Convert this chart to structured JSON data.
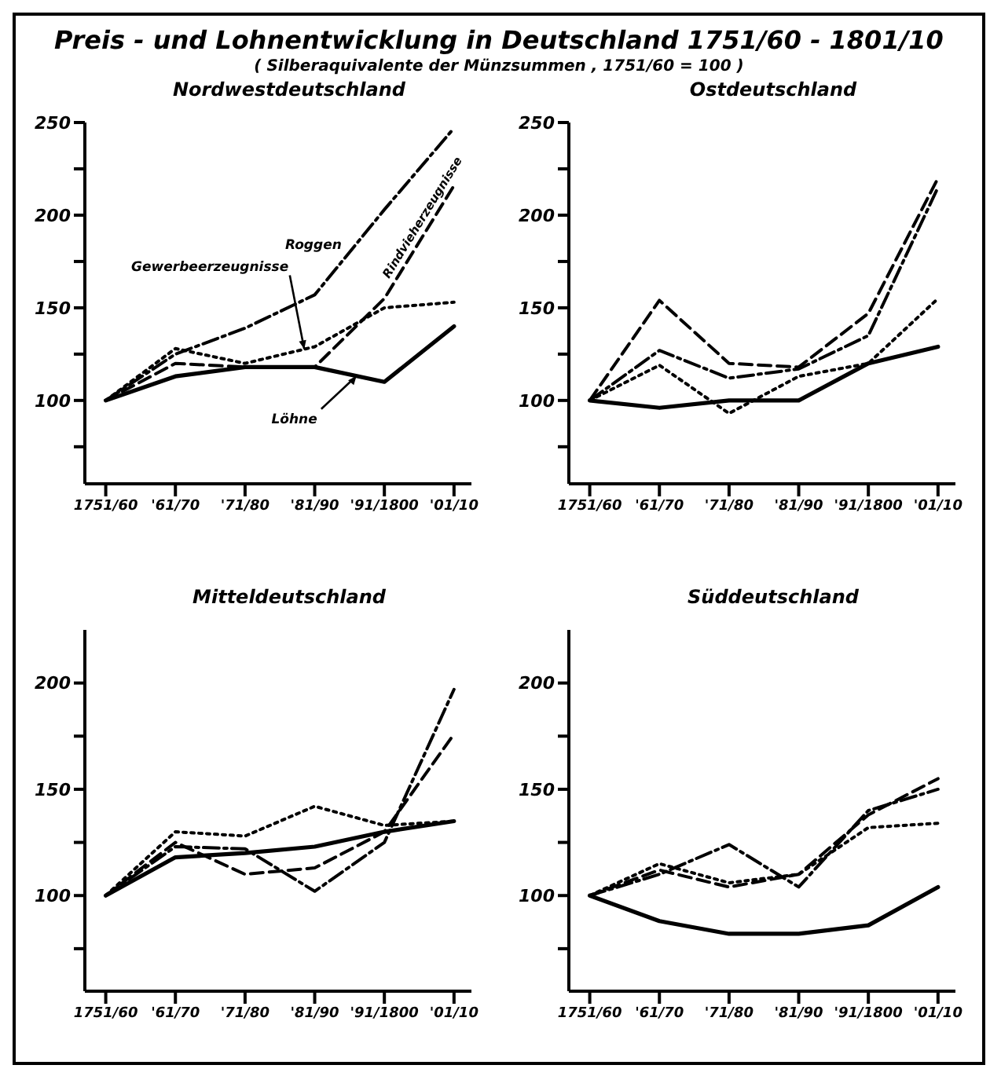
{
  "chart_data": [
    {
      "type": "line",
      "title": "Preis - und Lohnentwicklung in Deutschland  1751/60 - 1801/10",
      "subtitle": "( Silberaquivalente der Münzsummen , 1751/60 = 100 )",
      "annotations": [
        "Nordwestdeutschland"
      ],
      "categories": [
        "1751/60",
        "'61/70",
        "'71/80",
        "'81/90",
        "'91/1800",
        "'01/10"
      ],
      "ylim": [
        55,
        250
      ],
      "yticks": [
        {
          "value": 75,
          "label": null
        },
        100,
        {
          "value": 125,
          "label": null
        },
        150,
        {
          "value": 175,
          "label": null
        },
        200,
        {
          "value": 225,
          "label": null
        },
        250
      ],
      "grid": false,
      "legend": false,
      "series": [
        {
          "name": "Roggen",
          "color": "#000000",
          "line_style": "dashdot",
          "values": [
            100,
            125,
            139,
            157,
            203,
            247
          ]
        },
        {
          "name": "Rindvieherzeugnisse",
          "color": "#000000",
          "line_style": "dashed",
          "values": [
            100,
            120,
            118,
            118,
            155,
            216
          ]
        },
        {
          "name": "Gewerbeerzeugnisse",
          "color": "#000000",
          "line_style": "dotted",
          "values": [
            100,
            128,
            120,
            129,
            150,
            153
          ]
        },
        {
          "name": "Löhne",
          "color": "#000000",
          "line_style": "solid",
          "values": [
            100,
            113,
            118,
            118,
            110,
            140
          ]
        }
      ]
    },
    {
      "type": "line",
      "annotations": [
        "Ostdeutschland"
      ],
      "categories": [
        "1751/60",
        "'61/70",
        "'71/80",
        "'81/90",
        "'91/1800",
        "'01/10"
      ],
      "ylim": [
        55,
        250
      ],
      "yticks": [
        {
          "value": 75,
          "label": null
        },
        100,
        {
          "value": 125,
          "label": null
        },
        150,
        {
          "value": 175,
          "label": null
        },
        200,
        {
          "value": 225,
          "label": null
        },
        250
      ],
      "grid": false,
      "legend": false,
      "series": [
        {
          "color": "#000000",
          "line_style": "dashdot",
          "values": [
            100,
            127,
            112,
            117,
            135,
            215
          ]
        },
        {
          "color": "#000000",
          "line_style": "dashed",
          "values": [
            100,
            154,
            120,
            118,
            147,
            220
          ]
        },
        {
          "color": "#000000",
          "line_style": "dotted",
          "values": [
            100,
            119,
            93,
            113,
            120,
            155
          ]
        },
        {
          "color": "#000000",
          "line_style": "solid",
          "values": [
            100,
            96,
            100,
            100,
            120,
            129
          ]
        }
      ]
    },
    {
      "type": "line",
      "annotations": [
        "Mitteldeutschland"
      ],
      "categories": [
        "1751/60",
        "'61/70",
        "'71/80",
        "'81/90",
        "'91/1800",
        "'01/10"
      ],
      "ylim": [
        55,
        225
      ],
      "yticks": [
        {
          "value": 75,
          "label": null
        },
        100,
        {
          "value": 125,
          "label": null
        },
        150,
        {
          "value": 175,
          "label": null
        },
        200
      ],
      "grid": false,
      "legend": false,
      "series": [
        {
          "color": "#000000",
          "line_style": "dashdot",
          "values": [
            100,
            123,
            122,
            102,
            125,
            197
          ]
        },
        {
          "color": "#000000",
          "line_style": "dashed",
          "values": [
            100,
            125,
            110,
            113,
            130,
            176
          ]
        },
        {
          "color": "#000000",
          "line_style": "dotted",
          "values": [
            100,
            130,
            128,
            142,
            133,
            135
          ]
        },
        {
          "color": "#000000",
          "line_style": "solid",
          "values": [
            100,
            118,
            120,
            123,
            130,
            135
          ]
        }
      ]
    },
    {
      "type": "line",
      "annotations": [
        "Süddeutschland"
      ],
      "categories": [
        "1751/60",
        "'61/70",
        "'71/80",
        "'81/90",
        "'91/1800",
        "'01/10"
      ],
      "ylim": [
        55,
        225
      ],
      "yticks": [
        {
          "value": 75,
          "label": null
        },
        100,
        {
          "value": 125,
          "label": null
        },
        150,
        {
          "value": 175,
          "label": null
        },
        200
      ],
      "grid": false,
      "legend": false,
      "series": [
        {
          "color": "#000000",
          "line_style": "dashdot",
          "values": [
            100,
            110,
            124,
            104,
            140,
            150
          ]
        },
        {
          "color": "#000000",
          "line_style": "dashed",
          "values": [
            100,
            112,
            104,
            110,
            138,
            155
          ]
        },
        {
          "color": "#000000",
          "line_style": "dotted",
          "values": [
            100,
            115,
            106,
            110,
            132,
            134
          ]
        },
        {
          "color": "#000000",
          "line_style": "solid",
          "values": [
            100,
            88,
            82,
            82,
            86,
            104
          ]
        }
      ]
    }
  ]
}
